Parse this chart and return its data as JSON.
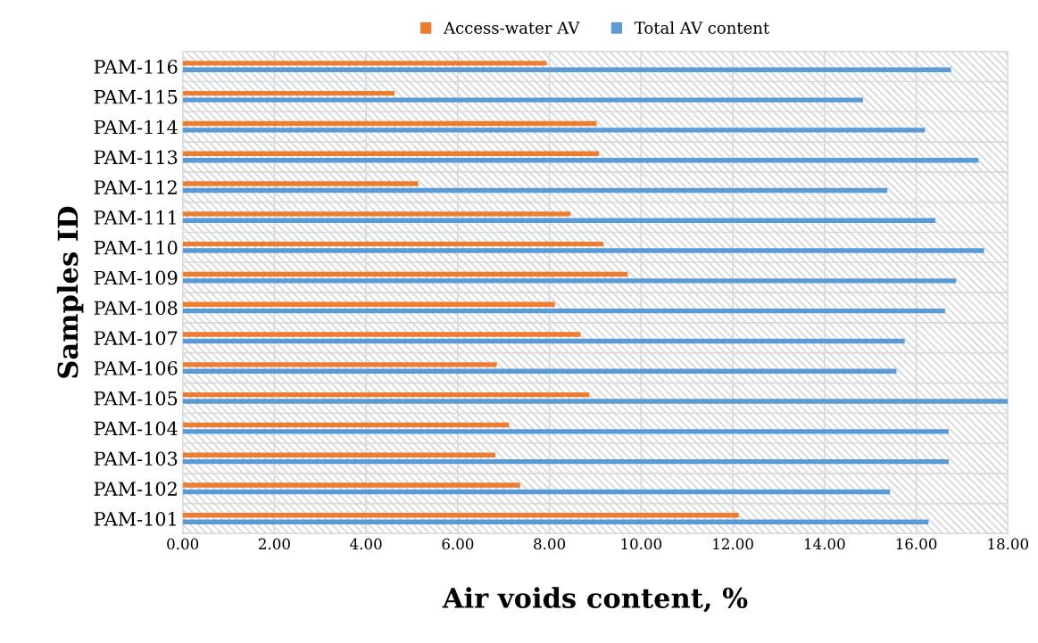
{
  "chart_data": {
    "type": "bar",
    "orientation": "horizontal",
    "xlabel": "Air voids content, %",
    "ylabel": "Samples ID",
    "categories": [
      "PAM-116",
      "PAM-115",
      "PAM-114",
      "PAM-113",
      "PAM-112",
      "PAM-111",
      "PAM-110",
      "PAM-109",
      "PAM-108",
      "PAM-107",
      "PAM-106",
      "PAM-105",
      "PAM-104",
      "PAM-103",
      "PAM-102",
      "PAM-101"
    ],
    "series": [
      {
        "name": "Access-water AV",
        "color": "#ed7d31",
        "values": [
          7.94,
          4.62,
          9.03,
          9.08,
          5.14,
          8.46,
          9.18,
          9.71,
          8.12,
          8.68,
          6.85,
          8.87,
          7.12,
          6.82,
          7.36,
          12.13
        ]
      },
      {
        "name": "Total AV content",
        "color": "#5b9bd5",
        "values": [
          16.76,
          14.84,
          16.19,
          17.36,
          15.37,
          16.42,
          17.48,
          16.87,
          16.63,
          15.75,
          15.57,
          18.0,
          16.71,
          16.71,
          15.43,
          16.27
        ]
      }
    ],
    "xlim": [
      0,
      18
    ],
    "xticks": [
      {
        "value": 0,
        "label": "0.00"
      },
      {
        "value": 2,
        "label": "2.00"
      },
      {
        "value": 4,
        "label": "4.00"
      },
      {
        "value": 6,
        "label": "6.00"
      },
      {
        "value": 8,
        "label": "8.00"
      },
      {
        "value": 10,
        "label": "10.00"
      },
      {
        "value": 12,
        "label": "12.00"
      },
      {
        "value": 14,
        "label": "14.00"
      },
      {
        "value": 16,
        "label": "16.00"
      },
      {
        "value": 18,
        "label": "18.00"
      }
    ],
    "grid": true,
    "legend": "top"
  }
}
